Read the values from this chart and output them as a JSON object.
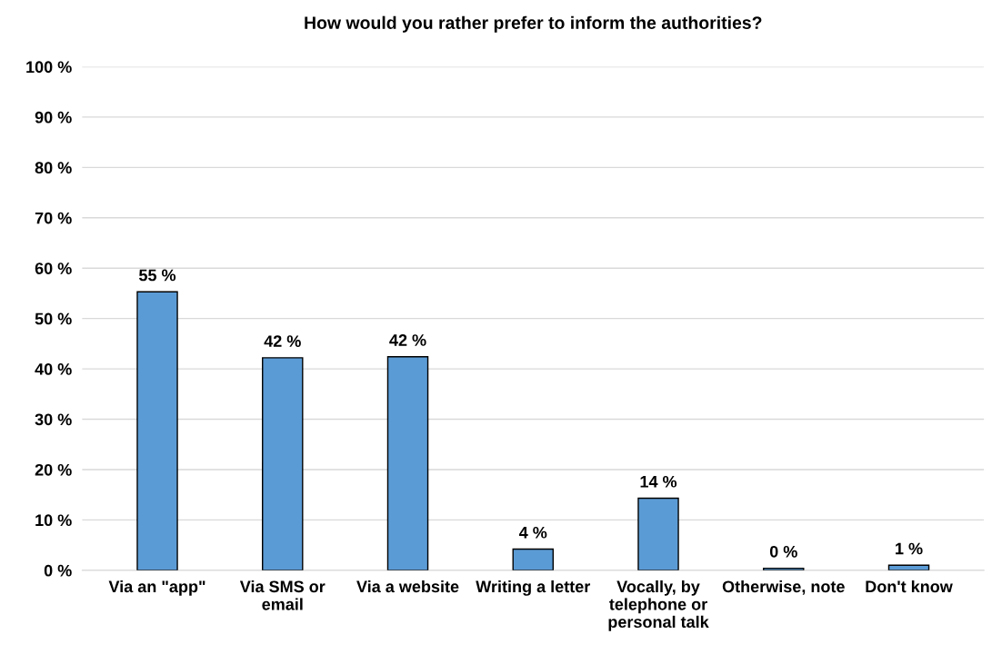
{
  "chart_data": {
    "type": "bar",
    "title": "How would you rather prefer to inform the authorities?",
    "categories": [
      "Via an \"app\"",
      "Via SMS or\nemail",
      "Via a website",
      "Writing a letter",
      "Vocally, by\ntelephone or\npersonal talk",
      "Otherwise, note",
      "Don't know"
    ],
    "values": [
      55.3,
      42.2,
      42.4,
      4.2,
      14.3,
      0.4,
      1.0
    ],
    "value_labels": [
      "55 %",
      "42 %",
      "42 %",
      "4 %",
      "14 %",
      "0 %",
      "1 %"
    ],
    "color": "#5b9bd5",
    "ylim": [
      0,
      100
    ],
    "yticks": [
      {
        "value": 0,
        "label": "0 %"
      },
      {
        "value": 10,
        "label": "10 %"
      },
      {
        "value": 20,
        "label": "20 %"
      },
      {
        "value": 30,
        "label": "30 %"
      },
      {
        "value": 40,
        "label": "40 %"
      },
      {
        "value": 50,
        "label": "50 %"
      },
      {
        "value": 60,
        "label": "60 %"
      },
      {
        "value": 70,
        "label": "70 %"
      },
      {
        "value": 80,
        "label": "80 %"
      },
      {
        "value": 90,
        "label": "90 %"
      },
      {
        "value": 100,
        "label": "100 %"
      }
    ],
    "grid": "y"
  }
}
